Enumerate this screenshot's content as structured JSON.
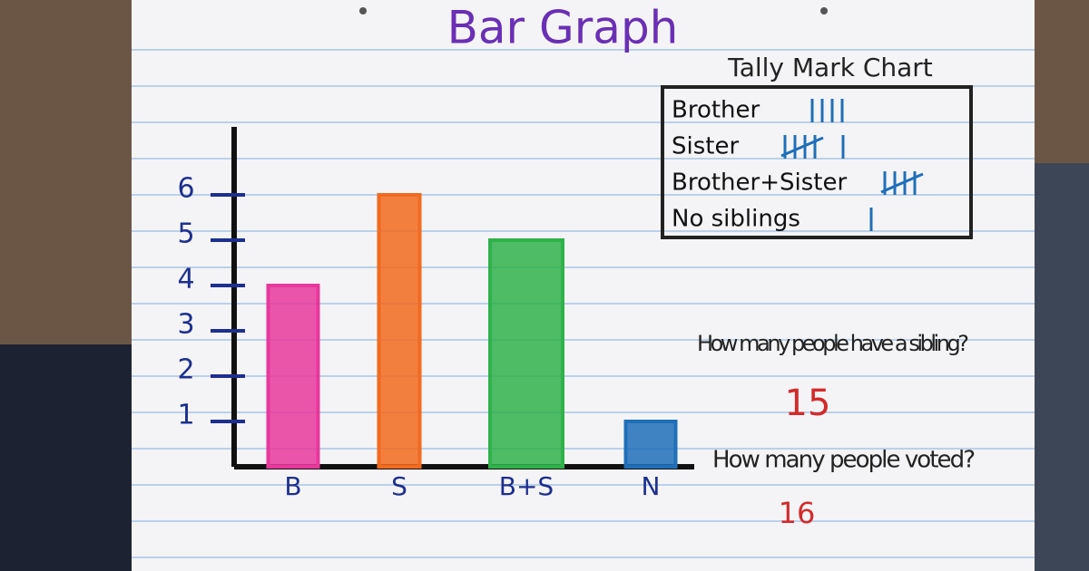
{
  "chart_data": {
    "type": "bar",
    "title": "Bar Graph",
    "categories": [
      "B",
      "S",
      "B+S",
      "N"
    ],
    "values": [
      4,
      6,
      5,
      1
    ],
    "colors": [
      "#e8389c",
      "#f26a1e",
      "#2fb24a",
      "#1f6fb8"
    ],
    "ylim": [
      0,
      7.5
    ],
    "yticks": [
      1,
      2,
      3,
      4,
      5,
      6
    ]
  },
  "tally_chart": {
    "title": "Tally Mark Chart",
    "rows": [
      {
        "label": "Brother",
        "count": 4
      },
      {
        "label": "Sister",
        "count": 6
      },
      {
        "label": "Brother+Sister",
        "count": 5
      },
      {
        "label": "No siblings",
        "count": 1
      }
    ]
  },
  "questions": [
    {
      "text": "How many people have a sibling?",
      "answer": "15"
    },
    {
      "text": "How many people voted?",
      "answer": "16"
    }
  ]
}
